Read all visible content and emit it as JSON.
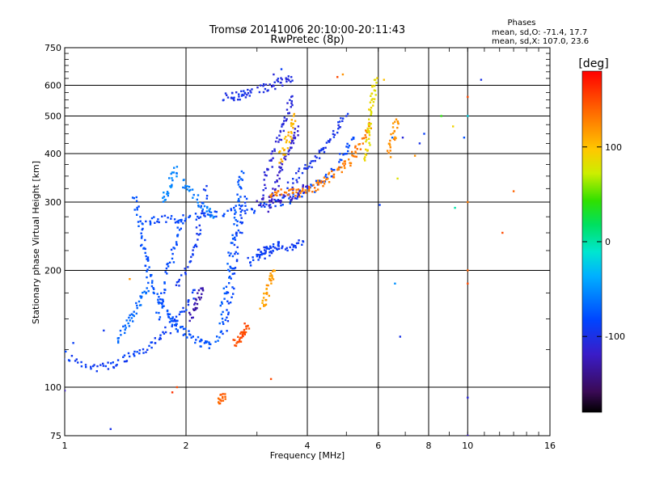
{
  "chart_data": {
    "type": "scatter",
    "title": "Tromsø 20141006 20:10:00-20:11:43",
    "subtitle": "RwPretec (8p)",
    "xlabel": "Frequency [MHz]",
    "ylabel": "Stationary phase Virtual Height [km]",
    "x_scale": "log",
    "y_scale": "log",
    "xlim": [
      1,
      16
    ],
    "ylim": [
      75,
      750
    ],
    "x_ticks": [
      1,
      2,
      4,
      6,
      8,
      10,
      16
    ],
    "y_ticks": [
      75,
      100,
      200,
      300,
      400,
      500,
      600,
      750
    ],
    "x_gridlines": [
      2,
      4,
      6,
      8,
      10
    ],
    "y_gridlines": [
      100,
      200,
      300,
      400,
      500,
      600
    ],
    "grid": true,
    "stats": {
      "header": "Phases",
      "line_o": "mean, sd,O: -71.4, 17.7",
      "line_x": "mean, sd,X: 107.0, 23.6"
    },
    "colorbar": {
      "unit": "[deg]",
      "range": [
        -180,
        180
      ],
      "ticks": [
        100,
        0,
        -100
      ],
      "tick_labels": [
        "100",
        "0",
        "-100"
      ]
    },
    "traces": [
      {
        "name": "",
        "phase": -80,
        "points": [
          [
            1.48,
            310
          ],
          [
            1.52,
            280
          ],
          [
            1.55,
            250
          ],
          [
            1.58,
            225
          ],
          [
            1.6,
            205
          ],
          [
            1.63,
            190
          ],
          [
            1.68,
            175
          ],
          [
            1.75,
            165
          ],
          [
            1.8,
            155
          ],
          [
            1.85,
            148
          ],
          [
            1.9,
            143
          ],
          [
            2.0,
            138
          ],
          [
            2.1,
            133
          ],
          [
            2.2,
            130
          ],
          [
            2.3,
            129
          ]
        ]
      },
      {
        "name": "",
        "phase": -85,
        "points": [
          [
            1.58,
            268
          ],
          [
            1.7,
            270
          ],
          [
            1.85,
            272
          ],
          [
            2.0,
            274
          ],
          [
            2.2,
            276
          ],
          [
            2.45,
            280
          ],
          [
            2.7,
            284
          ],
          [
            3.0,
            290
          ],
          [
            3.3,
            297
          ],
          [
            3.6,
            305
          ],
          [
            3.9,
            316
          ],
          [
            4.2,
            330
          ],
          [
            4.5,
            350
          ],
          [
            4.8,
            380
          ],
          [
            5.0,
            410
          ],
          [
            5.2,
            440
          ]
        ]
      },
      {
        "name": "",
        "phase": -90,
        "points": [
          [
            1.0,
            122
          ],
          [
            1.1,
            115
          ],
          [
            1.2,
            112
          ],
          [
            1.3,
            114
          ],
          [
            1.4,
            118
          ],
          [
            1.5,
            122
          ],
          [
            1.6,
            126
          ],
          [
            1.7,
            132
          ],
          [
            1.8,
            140
          ],
          [
            1.9,
            150
          ],
          [
            2.0,
            162
          ],
          [
            2.1,
            178
          ]
        ]
      },
      {
        "name": "",
        "phase": -75,
        "points": [
          [
            2.4,
            130
          ],
          [
            2.45,
            150
          ],
          [
            2.5,
            175
          ],
          [
            2.55,
            200
          ],
          [
            2.6,
            230
          ],
          [
            2.65,
            260
          ],
          [
            2.7,
            300
          ],
          [
            2.72,
            330
          ],
          [
            2.75,
            360
          ]
        ]
      },
      {
        "name": "",
        "phase": -88,
        "points": [
          [
            2.5,
            140
          ],
          [
            2.55,
            160
          ],
          [
            2.6,
            185
          ],
          [
            2.65,
            215
          ],
          [
            2.7,
            245
          ],
          [
            2.75,
            275
          ],
          [
            2.8,
            310
          ]
        ]
      },
      {
        "name": "",
        "phase": -82,
        "points": [
          [
            1.7,
            150
          ],
          [
            1.75,
            170
          ],
          [
            1.8,
            195
          ],
          [
            1.85,
            220
          ],
          [
            1.9,
            245
          ],
          [
            1.95,
            270
          ]
        ]
      },
      {
        "name": "",
        "phase": -95,
        "points": [
          [
            1.9,
            180
          ],
          [
            2.0,
            200
          ],
          [
            2.1,
            225
          ],
          [
            2.15,
            250
          ],
          [
            2.2,
            290
          ],
          [
            2.25,
            330
          ]
        ]
      },
      {
        "name": "",
        "phase": -100,
        "points": [
          [
            2.5,
            560
          ],
          [
            2.6,
            562
          ],
          [
            2.7,
            565
          ],
          [
            2.8,
            570
          ],
          [
            2.9,
            575
          ]
        ]
      },
      {
        "name": "",
        "phase": -105,
        "points": [
          [
            3.05,
            585
          ],
          [
            3.2,
            595
          ],
          [
            3.35,
            605
          ],
          [
            3.5,
            618
          ],
          [
            3.65,
            630
          ]
        ]
      },
      {
        "name": "",
        "phase": -110,
        "points": [
          [
            3.1,
            320
          ],
          [
            3.2,
            360
          ],
          [
            3.3,
            400
          ],
          [
            3.4,
            440
          ],
          [
            3.5,
            480
          ],
          [
            3.6,
            520
          ],
          [
            3.65,
            560
          ]
        ]
      },
      {
        "name": "",
        "phase": -115,
        "points": [
          [
            3.2,
            290
          ],
          [
            3.3,
            320
          ],
          [
            3.4,
            350
          ],
          [
            3.5,
            380
          ],
          [
            3.6,
            410
          ],
          [
            3.7,
            440
          ],
          [
            3.8,
            470
          ]
        ]
      },
      {
        "name": "",
        "phase": -100,
        "points": [
          [
            3.6,
            330
          ],
          [
            3.8,
            350
          ],
          [
            4.0,
            370
          ],
          [
            4.2,
            390
          ],
          [
            4.4,
            410
          ],
          [
            4.6,
            440
          ],
          [
            4.8,
            470
          ],
          [
            5.0,
            500
          ]
        ]
      },
      {
        "name": "",
        "phase": -120,
        "points": [
          [
            3.0,
            300
          ],
          [
            3.2,
            302
          ],
          [
            3.4,
            305
          ],
          [
            3.6,
            310
          ],
          [
            3.8,
            318
          ],
          [
            4.0,
            330
          ]
        ]
      },
      {
        "name": "",
        "phase": -95,
        "points": [
          [
            3.0,
            222
          ],
          [
            3.15,
            224
          ],
          [
            3.3,
            226
          ],
          [
            3.5,
            228
          ],
          [
            3.7,
            232
          ],
          [
            3.9,
            238
          ]
        ]
      },
      {
        "name": "",
        "phase": -90,
        "points": [
          [
            2.85,
            210
          ],
          [
            3.0,
            215
          ],
          [
            3.15,
            220
          ],
          [
            3.3,
            228
          ],
          [
            3.4,
            236
          ]
        ]
      },
      {
        "name": "",
        "phase": 130,
        "points": [
          [
            3.2,
            310
          ],
          [
            3.4,
            315
          ],
          [
            3.6,
            318
          ],
          [
            3.8,
            316
          ],
          [
            4.0,
            320
          ],
          [
            4.2,
            330
          ],
          [
            4.4,
            340
          ],
          [
            4.6,
            350
          ],
          [
            4.8,
            362
          ],
          [
            5.0,
            375
          ],
          [
            5.2,
            395
          ],
          [
            5.4,
            420
          ],
          [
            5.6,
            450
          ],
          [
            5.7,
            480
          ]
        ]
      },
      {
        "name": "",
        "phase": 115,
        "points": [
          [
            3.1,
            160
          ],
          [
            3.15,
            170
          ],
          [
            3.2,
            180
          ],
          [
            3.25,
            190
          ],
          [
            3.3,
            200
          ]
        ]
      },
      {
        "name": "",
        "phase": 150,
        "points": [
          [
            2.65,
            130
          ],
          [
            2.7,
            133
          ],
          [
            2.75,
            136
          ],
          [
            2.8,
            140
          ],
          [
            2.85,
            144
          ]
        ]
      },
      {
        "name": "",
        "phase": 105,
        "points": [
          [
            3.4,
            380
          ],
          [
            3.5,
            410
          ],
          [
            3.6,
            440
          ],
          [
            3.65,
            470
          ],
          [
            3.7,
            500
          ]
        ]
      },
      {
        "name": "",
        "phase": 85,
        "points": [
          [
            5.6,
            380
          ],
          [
            5.65,
            420
          ],
          [
            5.7,
            460
          ],
          [
            5.75,
            500
          ],
          [
            5.8,
            540
          ],
          [
            5.85,
            580
          ],
          [
            5.9,
            620
          ]
        ]
      },
      {
        "name": "",
        "phase": 120,
        "points": [
          [
            6.4,
            400
          ],
          [
            6.5,
            430
          ],
          [
            6.6,
            460
          ],
          [
            6.65,
            490
          ]
        ]
      },
      {
        "name": "",
        "phase": 140,
        "points": [
          [
            2.4,
            92
          ],
          [
            2.45,
            94
          ],
          [
            2.5,
            96
          ]
        ]
      },
      {
        "name": "",
        "phase": -60,
        "points": [
          [
            1.95,
            340
          ],
          [
            2.05,
            320
          ],
          [
            2.15,
            300
          ],
          [
            2.25,
            285
          ],
          [
            2.35,
            275
          ]
        ]
      },
      {
        "name": "",
        "phase": -55,
        "points": [
          [
            1.75,
            300
          ],
          [
            1.8,
            320
          ],
          [
            1.85,
            345
          ],
          [
            1.9,
            370
          ]
        ]
      },
      {
        "name": "",
        "phase": -130,
        "points": [
          [
            2.05,
            150
          ],
          [
            2.1,
            160
          ],
          [
            2.15,
            170
          ],
          [
            2.2,
            180
          ]
        ]
      },
      {
        "name": "",
        "phase": -70,
        "points": [
          [
            1.35,
            130
          ],
          [
            1.4,
            140
          ],
          [
            1.45,
            150
          ],
          [
            1.5,
            160
          ],
          [
            1.55,
            170
          ],
          [
            1.6,
            180
          ]
        ]
      }
    ],
    "scattered_points": [
      {
        "x": 1.05,
        "y": 130,
        "phase": -90
      },
      {
        "x": 1.25,
        "y": 140,
        "phase": -95
      },
      {
        "x": 1.3,
        "y": 78,
        "phase": -100
      },
      {
        "x": 1.0,
        "y": 98,
        "phase": -120
      },
      {
        "x": 1.45,
        "y": 190,
        "phase": 120
      },
      {
        "x": 1.9,
        "y": 100,
        "phase": 150
      },
      {
        "x": 1.85,
        "y": 97,
        "phase": 160
      },
      {
        "x": 3.25,
        "y": 105,
        "phase": 150
      },
      {
        "x": 4.75,
        "y": 630,
        "phase": 150
      },
      {
        "x": 4.9,
        "y": 640,
        "phase": 120
      },
      {
        "x": 6.9,
        "y": 440,
        "phase": -110
      },
      {
        "x": 7.6,
        "y": 425,
        "phase": -100
      },
      {
        "x": 7.8,
        "y": 450,
        "phase": -90
      },
      {
        "x": 8.6,
        "y": 500,
        "phase": 40
      },
      {
        "x": 9.2,
        "y": 470,
        "phase": 90
      },
      {
        "x": 9.8,
        "y": 440,
        "phase": -80
      },
      {
        "x": 10.0,
        "y": 500,
        "phase": -20
      },
      {
        "x": 10.0,
        "y": 560,
        "phase": 150
      },
      {
        "x": 10.0,
        "y": 300,
        "phase": 130
      },
      {
        "x": 10.0,
        "y": 200,
        "phase": 140
      },
      {
        "x": 10.0,
        "y": 185,
        "phase": 150
      },
      {
        "x": 10.0,
        "y": 94,
        "phase": -110
      },
      {
        "x": 10.0,
        "y": 75,
        "phase": -120
      },
      {
        "x": 10.8,
        "y": 620,
        "phase": -100
      },
      {
        "x": 12.2,
        "y": 250,
        "phase": 150
      },
      {
        "x": 13.0,
        "y": 320,
        "phase": 140
      },
      {
        "x": 9.3,
        "y": 290,
        "phase": 0
      },
      {
        "x": 6.2,
        "y": 620,
        "phase": 100
      },
      {
        "x": 6.6,
        "y": 185,
        "phase": -50
      },
      {
        "x": 6.8,
        "y": 135,
        "phase": -100
      },
      {
        "x": 7.4,
        "y": 395,
        "phase": 120
      },
      {
        "x": 3.45,
        "y": 660,
        "phase": -90
      },
      {
        "x": 3.3,
        "y": 640,
        "phase": -110
      },
      {
        "x": 6.05,
        "y": 295,
        "phase": -90
      },
      {
        "x": 6.5,
        "y": 440,
        "phase": -70
      },
      {
        "x": 6.7,
        "y": 345,
        "phase": 80
      }
    ]
  }
}
